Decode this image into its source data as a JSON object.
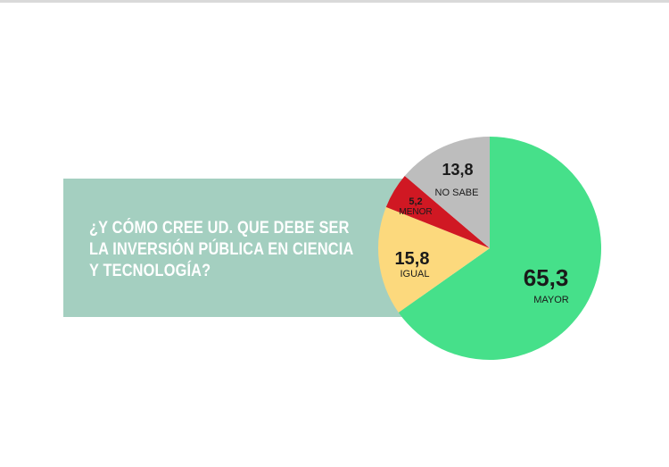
{
  "question": {
    "lines": [
      "¿Y CÓMO CREE UD. QUE DEBE SER",
      "LA INVERSIÓN PÚBLICA EN CIENCIA",
      "Y TECNOLOGÍA?"
    ]
  },
  "chart_data": {
    "type": "pie",
    "slices": [
      {
        "category": "MAYOR",
        "value": 65.3,
        "label": "65,3",
        "color": "#46e08a"
      },
      {
        "category": "IGUAL",
        "value": 15.8,
        "label": "15,8",
        "color": "#fcd97d"
      },
      {
        "category": "MENOR",
        "value": 5.2,
        "label": "5,2",
        "color": "#d01823"
      },
      {
        "category": "NO SABE",
        "value": 13.8,
        "label": "13,8",
        "color": "#bdbdbd"
      }
    ],
    "start": "12 o'clock",
    "direction": "clockwise"
  }
}
